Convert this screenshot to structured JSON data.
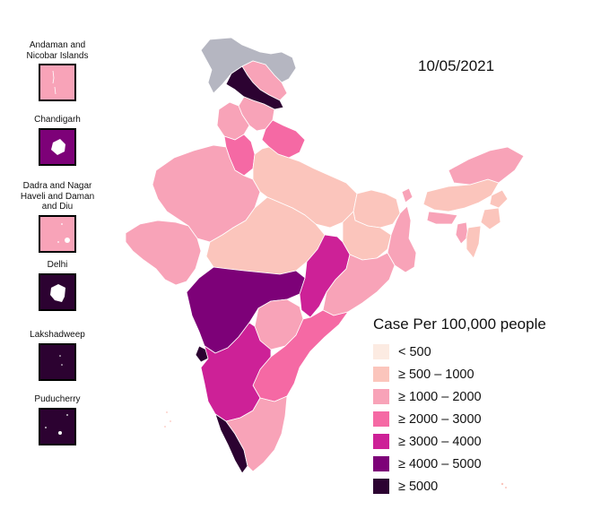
{
  "date": "10/05/2021",
  "legend": {
    "title": "Case Per 100,000 people",
    "classes": [
      {
        "label": "< 500",
        "color": "#fcebe2"
      },
      {
        "label": "≥ 500 – 1000",
        "color": "#fbc5bc"
      },
      {
        "label": "≥ 1000 – 2000",
        "color": "#f8a3b8"
      },
      {
        "label": "≥ 2000 – 3000",
        "color": "#f569a4"
      },
      {
        "label": "≥ 3000 – 4000",
        "color": "#cd2197"
      },
      {
        "label": "≥ 4000 – 5000",
        "color": "#7d0178"
      },
      {
        "label": "≥ 5000",
        "color": "#2c0231"
      }
    ]
  },
  "no_data_color": "#b5b6c1",
  "insets": [
    {
      "name": "Andaman and Nicobar Islands",
      "class": 2
    },
    {
      "name": "Chandigarh",
      "class": 5
    },
    {
      "name": "Dadra and Nagar Haveli and Daman and Diu",
      "class": 2
    },
    {
      "name": "Delhi",
      "class": 6
    },
    {
      "name": "Lakshadweep",
      "class": 6
    },
    {
      "name": "Puducherry",
      "class": 6
    }
  ],
  "regions": [
    {
      "name": "Jammu and Kashmir",
      "class": 6
    },
    {
      "name": "Ladakh",
      "class": 2
    },
    {
      "name": "Himachal Pradesh",
      "class": 2
    },
    {
      "name": "Punjab",
      "class": 2
    },
    {
      "name": "Uttarakhand",
      "class": 3
    },
    {
      "name": "Haryana",
      "class": 3
    },
    {
      "name": "Rajasthan",
      "class": 2
    },
    {
      "name": "Uttar Pradesh",
      "class": 1
    },
    {
      "name": "Bihar",
      "class": 1
    },
    {
      "name": "Gujarat",
      "class": 2
    },
    {
      "name": "Madhya Pradesh",
      "class": 1
    },
    {
      "name": "Jharkhand",
      "class": 1
    },
    {
      "name": "West Bengal",
      "class": 2
    },
    {
      "name": "Chhattisgarh",
      "class": 4
    },
    {
      "name": "Odisha",
      "class": 2
    },
    {
      "name": "Maharashtra",
      "class": 5
    },
    {
      "name": "Telangana",
      "class": 2
    },
    {
      "name": "Andhra Pradesh",
      "class": 3
    },
    {
      "name": "Goa",
      "class": 6
    },
    {
      "name": "Karnataka",
      "class": 4
    },
    {
      "name": "Tamil Nadu",
      "class": 2
    },
    {
      "name": "Kerala",
      "class": 6
    },
    {
      "name": "Sikkim",
      "class": 2
    },
    {
      "name": "Assam",
      "class": 1
    },
    {
      "name": "Arunachal Pradesh",
      "class": 2
    },
    {
      "name": "Meghalaya",
      "class": 2
    },
    {
      "name": "Nagaland",
      "class": 1
    },
    {
      "name": "Manipur",
      "class": 1
    },
    {
      "name": "Tripura",
      "class": 2
    },
    {
      "name": "Mizoram",
      "class": 1
    }
  ]
}
